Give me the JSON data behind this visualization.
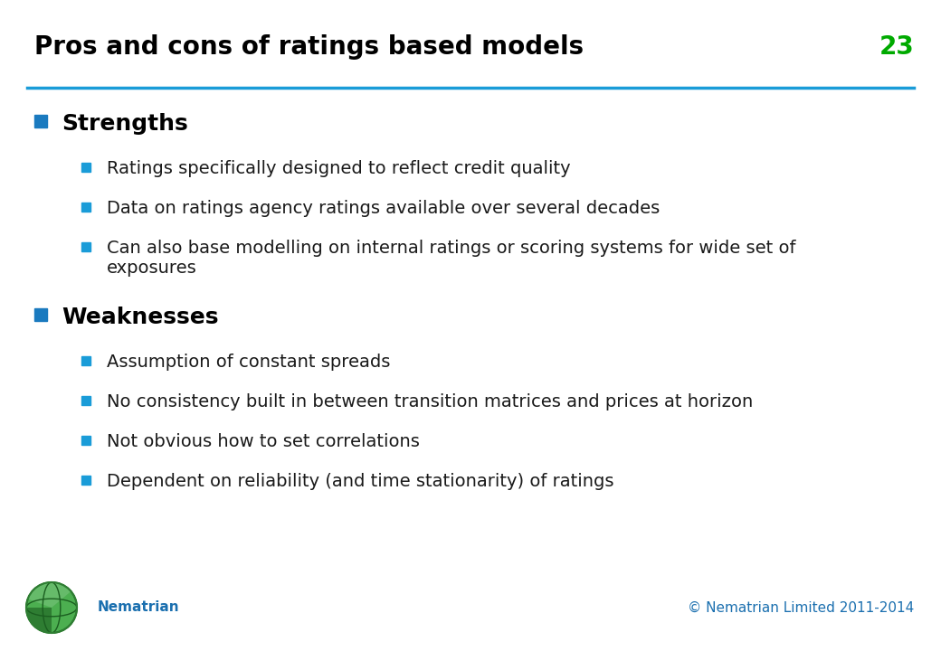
{
  "title": "Pros and cons of ratings based models",
  "slide_number": "23",
  "title_color": "#000000",
  "title_fontsize": 20,
  "slide_number_color": "#00aa00",
  "line_color": "#1a9cd8",
  "background_color": "#ffffff",
  "bullet_color": "#1a7abf",
  "sub_bullet_color": "#1a9cd8",
  "footer_left": "Nematrian",
  "footer_right": "© Nematrian Limited 2011-2014",
  "footer_color": "#1a6faf",
  "level0_fontsize": 18,
  "level1_fontsize": 14,
  "items": [
    {
      "level": 0,
      "text": "Strengths",
      "bold": true
    },
    {
      "level": 1,
      "text": "Ratings specifically designed to reflect credit quality",
      "bold": false
    },
    {
      "level": 1,
      "text": "Data on ratings agency ratings available over several decades",
      "bold": false
    },
    {
      "level": 1,
      "text": "Can also base modelling on internal ratings or scoring systems for wide set of\nexposures",
      "bold": false
    },
    {
      "level": 0,
      "text": "Weaknesses",
      "bold": true
    },
    {
      "level": 1,
      "text": "Assumption of constant spreads",
      "bold": false
    },
    {
      "level": 1,
      "text": "No consistency built in between transition matrices and prices at horizon",
      "bold": false
    },
    {
      "level": 1,
      "text": "Not obvious how to set correlations",
      "bold": false
    },
    {
      "level": 1,
      "text": "Dependent on reliability (and time stationarity) of ratings",
      "bold": false
    }
  ]
}
